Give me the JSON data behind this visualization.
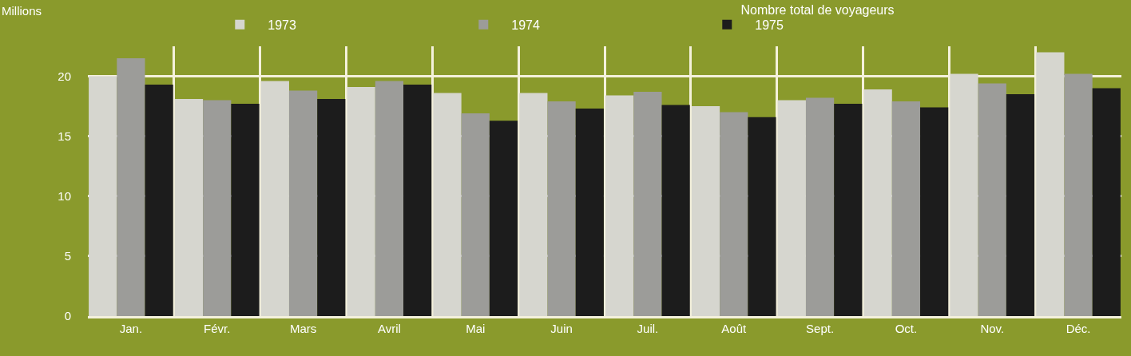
{
  "chart_data": {
    "type": "bar",
    "title": "Nombre total de voyageurs",
    "ylabel": "Millions",
    "categories": [
      "Jan.",
      "Févr.",
      "Mars",
      "Avril",
      "Mai",
      "Juin",
      "Juil.",
      "Août",
      "Sept.",
      "Oct.",
      "Nov.",
      "Déc."
    ],
    "series": [
      {
        "name": "1973",
        "color": "#d6d6cf",
        "values": [
          20.0,
          18.1,
          19.6,
          19.1,
          18.6,
          18.6,
          18.4,
          17.5,
          18.0,
          18.9,
          20.2,
          22.0
        ]
      },
      {
        "name": "1974",
        "color": "#9c9c99",
        "values": [
          21.5,
          18.0,
          18.8,
          19.6,
          16.9,
          17.9,
          18.7,
          17.0,
          18.2,
          17.9,
          19.4,
          20.2
        ]
      },
      {
        "name": "1975",
        "color": "#1c1c1c",
        "values": [
          19.3,
          17.7,
          18.1,
          19.3,
          16.3,
          17.3,
          17.6,
          16.6,
          17.7,
          17.4,
          18.5,
          19.0
        ]
      }
    ],
    "ylim": [
      0,
      22.5
    ],
    "yticks": [
      0,
      5,
      10,
      15,
      20
    ],
    "grid": true,
    "legend": "top"
  }
}
